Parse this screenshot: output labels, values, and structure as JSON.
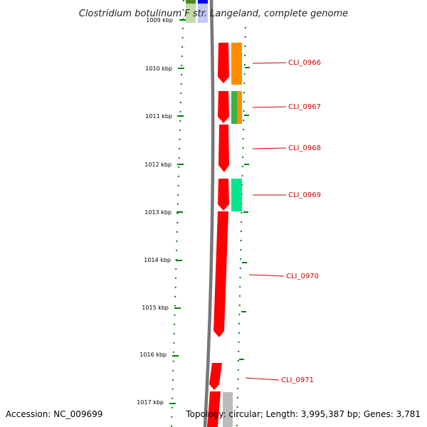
{
  "title": "Clostridium botulinum F str. Langeland, complete genome",
  "accession_text": "Accession: NC_009699",
  "summary_text": "Topology: circular; Length: 3,995,387 bp; Genes: 3,781",
  "ticks": [
    {
      "label": "1009 kbp"
    },
    {
      "label": "1010 kbp"
    },
    {
      "label": "1011 kbp"
    },
    {
      "label": "1012 kbp"
    },
    {
      "label": "1013 kbp"
    },
    {
      "label": "1014 kbp"
    },
    {
      "label": "1015 kbp"
    },
    {
      "label": "1016 kbp"
    },
    {
      "label": "1017 kbp"
    }
  ],
  "genes": [
    {
      "name": "CLI_0966"
    },
    {
      "name": "CLI_0967"
    },
    {
      "name": "CLI_0968"
    },
    {
      "name": "CLI_0969"
    },
    {
      "name": "CLI_0970"
    },
    {
      "name": "CLI_0971"
    }
  ],
  "colors": {
    "cds": "#ff0000",
    "cog_orange": "#ff8c00",
    "cog_green": "#3cb043",
    "cog_teal": "#00e68a",
    "cog_grey": "#bbbbbb",
    "backbone": "#777777",
    "ticks": "#008000",
    "label": "#cc0000"
  }
}
